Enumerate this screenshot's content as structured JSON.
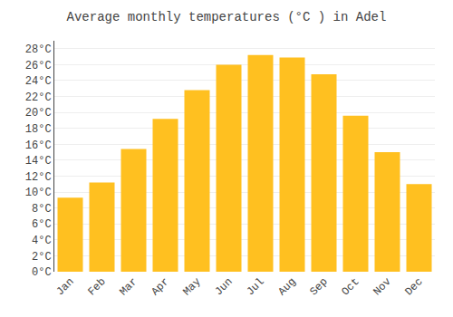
{
  "chart_data": {
    "type": "bar",
    "title": "Average monthly temperatures (°C ) in Adel",
    "categories": [
      "Jan",
      "Feb",
      "Mar",
      "Apr",
      "May",
      "Jun",
      "Jul",
      "Aug",
      "Sep",
      "Oct",
      "Nov",
      "Dec"
    ],
    "values": [
      9.3,
      11.2,
      15.4,
      19.2,
      22.8,
      26.0,
      27.2,
      26.9,
      24.8,
      19.6,
      15.0,
      11.0
    ],
    "color": "#FFC020",
    "ylim": [
      0,
      29
    ],
    "yticks": [
      {
        "value": 0,
        "label": "0°C"
      },
      {
        "value": 2,
        "label": "2°C"
      },
      {
        "value": 4,
        "label": "4°C"
      },
      {
        "value": 6,
        "label": "6°C"
      },
      {
        "value": 8,
        "label": "8°C"
      },
      {
        "value": 10,
        "label": "10°C"
      },
      {
        "value": 12,
        "label": "12°C"
      },
      {
        "value": 14,
        "label": "14°C"
      },
      {
        "value": 16,
        "label": "16°C"
      },
      {
        "value": 18,
        "label": "18°C"
      },
      {
        "value": 20,
        "label": "20°C"
      },
      {
        "value": 22,
        "label": "22°C"
      },
      {
        "value": 24,
        "label": "24°C"
      },
      {
        "value": 26,
        "label": "26°C"
      },
      {
        "value": 28,
        "label": "28°C"
      }
    ],
    "grid": true
  }
}
